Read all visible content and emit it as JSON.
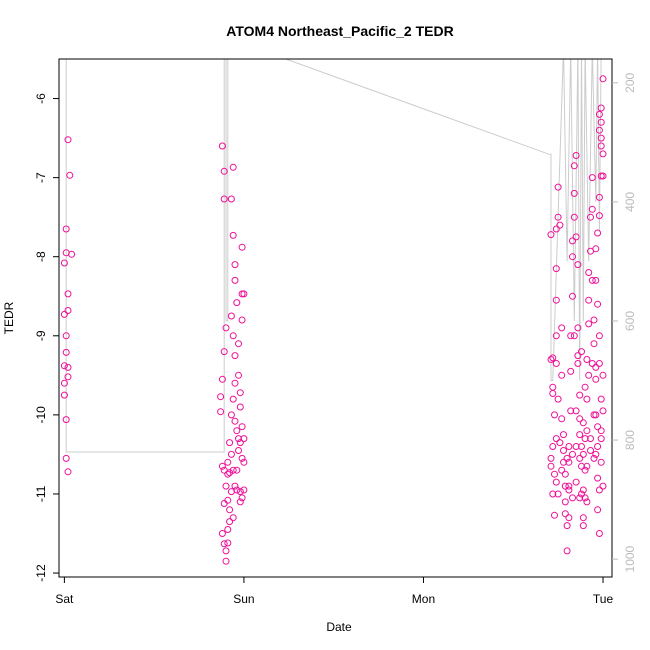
{
  "chart_data": {
    "type": "scatter",
    "title": "ATOM4 Northeast_Pacific_2 TEDR",
    "xlabel": "Date",
    "ylabel": "TEDR",
    "x_unit": "days since Sat 00:00",
    "xlim": [
      -0.03,
      3.05
    ],
    "ylim": [
      -12.05,
      -5.5
    ],
    "y2lim": [
      1030,
      160
    ],
    "x_ticks": [
      {
        "value": 0,
        "label": "Sat"
      },
      {
        "value": 1,
        "label": "Sun"
      },
      {
        "value": 2,
        "label": "Mon"
      },
      {
        "value": 3,
        "label": "Tue"
      }
    ],
    "y_ticks": [
      {
        "value": -6,
        "label": "-6"
      },
      {
        "value": -7,
        "label": "-7"
      },
      {
        "value": -8,
        "label": "-8"
      },
      {
        "value": -9,
        "label": "-9"
      },
      {
        "value": -10,
        "label": "-10"
      },
      {
        "value": -11,
        "label": "-11"
      },
      {
        "value": -12,
        "label": "-12"
      }
    ],
    "y2_ticks": [
      {
        "value": 200,
        "label": "200"
      },
      {
        "value": 400,
        "label": "400"
      },
      {
        "value": 600,
        "label": "600"
      },
      {
        "value": 800,
        "label": "800"
      },
      {
        "value": 1000,
        "label": "1000"
      }
    ],
    "colors": {
      "points": "#ee1199",
      "altitude_line": "#cccccc",
      "right_axis": "#bbbbbb"
    },
    "series": [
      {
        "type": "line",
        "axis": "right",
        "points": [
          [
            0.01,
            140
          ],
          [
            0.01,
            820
          ],
          [
            0.8,
            820
          ],
          [
            0.89,
            820
          ],
          [
            0.89,
            140
          ],
          [
            0.9,
            140
          ],
          [
            0.9,
            600
          ],
          [
            0.91,
            600
          ],
          [
            0.91,
            140
          ],
          [
            0.92,
            140
          ],
          [
            1.05,
            140
          ],
          [
            2.7,
            320
          ],
          [
            2.71,
            320
          ],
          [
            2.71,
            700
          ],
          [
            2.72,
            700
          ],
          [
            2.78,
            140
          ],
          [
            2.8,
            500
          ],
          [
            2.82,
            140
          ],
          [
            2.84,
            600
          ],
          [
            2.86,
            140
          ],
          [
            2.87,
            700
          ],
          [
            2.88,
            140
          ],
          [
            2.89,
            600
          ],
          [
            2.9,
            140
          ],
          [
            2.92,
            500
          ],
          [
            2.94,
            140
          ],
          [
            2.96,
            400
          ],
          [
            2.97,
            140
          ],
          [
            2.98,
            450
          ],
          [
            2.99,
            140
          ]
        ]
      },
      {
        "type": "scatter",
        "axis": "left",
        "points": [
          [
            0.0,
            -9.38
          ],
          [
            0.0,
            -9.6
          ],
          [
            0.0,
            -9.75
          ],
          [
            0.01,
            -10.06
          ],
          [
            0.01,
            -10.55
          ],
          [
            0.02,
            -10.72
          ],
          [
            0.01,
            -7.95
          ],
          [
            0.0,
            -8.08
          ],
          [
            0.01,
            -7.65
          ],
          [
            0.02,
            -8.47
          ],
          [
            0.0,
            -8.73
          ],
          [
            0.02,
            -8.68
          ],
          [
            0.01,
            -9.0
          ],
          [
            0.01,
            -9.21
          ],
          [
            0.02,
            -9.52
          ],
          [
            0.02,
            -9.4
          ],
          [
            0.02,
            -6.52
          ],
          [
            0.03,
            -6.97
          ],
          [
            0.04,
            -7.97
          ],
          [
            0.88,
            -6.6
          ],
          [
            0.89,
            -6.92
          ],
          [
            0.89,
            -7.27
          ],
          [
            0.9,
            -8.9
          ],
          [
            0.89,
            -9.2
          ],
          [
            0.88,
            -9.55
          ],
          [
            0.87,
            -9.77
          ],
          [
            0.87,
            -9.96
          ],
          [
            0.88,
            -10.65
          ],
          [
            0.89,
            -10.7
          ],
          [
            0.89,
            -11.12
          ],
          [
            0.88,
            -11.5
          ],
          [
            0.89,
            -11.63
          ],
          [
            0.9,
            -11.72
          ],
          [
            0.9,
            -11.85
          ],
          [
            0.91,
            -11.62
          ],
          [
            0.91,
            -11.45
          ],
          [
            0.91,
            -11.08
          ],
          [
            0.9,
            -10.9
          ],
          [
            0.91,
            -10.6
          ],
          [
            0.92,
            -10.35
          ],
          [
            0.93,
            -10.5
          ],
          [
            0.93,
            -10.0
          ],
          [
            0.94,
            -9.8
          ],
          [
            0.95,
            -9.6
          ],
          [
            0.95,
            -9.25
          ],
          [
            0.94,
            -9.0
          ],
          [
            0.93,
            -8.75
          ],
          [
            0.93,
            -7.27
          ],
          [
            0.94,
            -6.87
          ],
          [
            0.94,
            -7.73
          ],
          [
            0.95,
            -8.1
          ],
          [
            0.95,
            -8.3
          ],
          [
            0.96,
            -8.58
          ],
          [
            0.97,
            -9.1
          ],
          [
            0.97,
            -9.5
          ],
          [
            0.98,
            -9.72
          ],
          [
            0.98,
            -9.9
          ],
          [
            0.99,
            -10.15
          ],
          [
            1.0,
            -10.3
          ],
          [
            1.0,
            -10.6
          ],
          [
            1.0,
            -10.95
          ],
          [
            0.99,
            -11.05
          ],
          [
            0.98,
            -10.97
          ],
          [
            0.97,
            -10.45
          ],
          [
            0.96,
            -10.2
          ],
          [
            0.95,
            -10.08
          ],
          [
            0.94,
            -10.7
          ],
          [
            0.93,
            -10.97
          ],
          [
            0.92,
            -11.2
          ],
          [
            0.92,
            -10.73
          ],
          [
            0.96,
            -10.95
          ],
          [
            0.99,
            -8.47
          ],
          [
            0.99,
            -8.8
          ],
          [
            0.99,
            -7.88
          ],
          [
            1.0,
            -8.47
          ],
          [
            0.97,
            -10.3
          ],
          [
            0.98,
            -11.1
          ],
          [
            0.96,
            -10.7
          ],
          [
            0.95,
            -10.9
          ],
          [
            0.94,
            -11.3
          ],
          [
            0.92,
            -11.35
          ],
          [
            0.91,
            -10.75
          ],
          [
            0.98,
            -10.35
          ],
          [
            0.99,
            -10.55
          ],
          [
            2.71,
            -7.72
          ],
          [
            2.72,
            -9.28
          ],
          [
            2.71,
            -9.3
          ],
          [
            2.72,
            -9.65
          ],
          [
            2.72,
            -9.73
          ],
          [
            2.73,
            -10.0
          ],
          [
            2.72,
            -10.4
          ],
          [
            2.71,
            -10.55
          ],
          [
            2.71,
            -10.65
          ],
          [
            2.73,
            -10.75
          ],
          [
            2.74,
            -10.85
          ],
          [
            2.72,
            -11.0
          ],
          [
            2.73,
            -11.27
          ],
          [
            2.75,
            -11.0
          ],
          [
            2.74,
            -10.3
          ],
          [
            2.75,
            -9.8
          ],
          [
            2.74,
            -9.35
          ],
          [
            2.74,
            -9.0
          ],
          [
            2.74,
            -8.55
          ],
          [
            2.74,
            -8.15
          ],
          [
            2.74,
            -7.65
          ],
          [
            2.75,
            -7.5
          ],
          [
            2.75,
            -7.12
          ],
          [
            2.76,
            -7.6
          ],
          [
            2.77,
            -8.9
          ],
          [
            2.77,
            -9.5
          ],
          [
            2.77,
            -10.05
          ],
          [
            2.78,
            -10.25
          ],
          [
            2.78,
            -10.6
          ],
          [
            2.79,
            -10.9
          ],
          [
            2.79,
            -11.1
          ],
          [
            2.79,
            -11.25
          ],
          [
            2.8,
            -11.4
          ],
          [
            2.8,
            -11.72
          ],
          [
            2.81,
            -11.3
          ],
          [
            2.81,
            -10.9
          ],
          [
            2.81,
            -10.4
          ],
          [
            2.82,
            -9.95
          ],
          [
            2.82,
            -9.45
          ],
          [
            2.82,
            -9.0
          ],
          [
            2.83,
            -8.5
          ],
          [
            2.83,
            -8.0
          ],
          [
            2.83,
            -7.8
          ],
          [
            2.84,
            -7.5
          ],
          [
            2.84,
            -7.2
          ],
          [
            2.84,
            -6.85
          ],
          [
            2.85,
            -6.72
          ],
          [
            2.85,
            -7.75
          ],
          [
            2.86,
            -8.1
          ],
          [
            2.86,
            -8.9
          ],
          [
            2.86,
            -9.35
          ],
          [
            2.87,
            -9.75
          ],
          [
            2.87,
            -10.05
          ],
          [
            2.88,
            -10.4
          ],
          [
            2.88,
            -10.65
          ],
          [
            2.88,
            -11.0
          ],
          [
            2.89,
            -11.3
          ],
          [
            2.89,
            -11.4
          ],
          [
            2.9,
            -11.05
          ],
          [
            2.9,
            -10.7
          ],
          [
            2.9,
            -10.3
          ],
          [
            2.91,
            -9.8
          ],
          [
            2.91,
            -9.3
          ],
          [
            2.92,
            -8.85
          ],
          [
            2.92,
            -8.55
          ],
          [
            2.92,
            -8.2
          ],
          [
            2.93,
            -7.93
          ],
          [
            2.93,
            -7.5
          ],
          [
            2.94,
            -7.0
          ],
          [
            2.94,
            -7.4
          ],
          [
            2.94,
            -8.3
          ],
          [
            2.95,
            -8.8
          ],
          [
            2.95,
            -9.1
          ],
          [
            2.96,
            -9.55
          ],
          [
            2.96,
            -10.0
          ],
          [
            2.96,
            -10.5
          ],
          [
            2.97,
            -10.8
          ],
          [
            2.97,
            -11.2
          ],
          [
            2.98,
            -11.5
          ],
          [
            2.98,
            -10.95
          ],
          [
            2.99,
            -10.6
          ],
          [
            2.99,
            -10.2
          ],
          [
            2.99,
            -9.8
          ],
          [
            2.98,
            -9.35
          ],
          [
            2.98,
            -9.0
          ],
          [
            2.97,
            -8.6
          ],
          [
            2.96,
            -8.3
          ],
          [
            2.96,
            -7.9
          ],
          [
            2.97,
            -7.7
          ],
          [
            2.98,
            -7.48
          ],
          [
            2.98,
            -7.25
          ],
          [
            2.99,
            -6.98
          ],
          [
            2.99,
            -6.6
          ],
          [
            2.98,
            -6.4
          ],
          [
            2.98,
            -6.2
          ],
          [
            2.99,
            -6.12
          ],
          [
            2.99,
            -6.5
          ],
          [
            2.99,
            -6.3
          ],
          [
            3.0,
            -6.7
          ],
          [
            3.0,
            -5.75
          ],
          [
            3.0,
            -6.98
          ],
          [
            3.0,
            -9.5
          ],
          [
            3.0,
            -9.95
          ],
          [
            3.0,
            -10.9
          ],
          [
            2.8,
            -10.55
          ],
          [
            2.78,
            -10.45
          ],
          [
            2.76,
            -10.35
          ],
          [
            2.77,
            -10.7
          ],
          [
            2.79,
            -10.75
          ],
          [
            2.81,
            -10.6
          ],
          [
            2.83,
            -10.5
          ],
          [
            2.85,
            -10.4
          ],
          [
            2.87,
            -10.55
          ],
          [
            2.89,
            -10.5
          ],
          [
            2.91,
            -10.65
          ],
          [
            2.93,
            -10.45
          ],
          [
            2.95,
            -10.55
          ],
          [
            2.97,
            -10.4
          ],
          [
            2.85,
            -10.85
          ],
          [
            2.87,
            -11.05
          ],
          [
            2.89,
            -10.95
          ],
          [
            2.91,
            -11.1
          ],
          [
            2.83,
            -11.05
          ],
          [
            2.81,
            -10.95
          ],
          [
            2.84,
            -9.0
          ],
          [
            2.86,
            -9.25
          ],
          [
            2.88,
            -9.2
          ],
          [
            2.9,
            -9.65
          ],
          [
            2.92,
            -9.5
          ],
          [
            2.94,
            -9.35
          ],
          [
            2.96,
            -9.4
          ],
          [
            2.85,
            -9.95
          ],
          [
            2.87,
            -10.25
          ],
          [
            2.89,
            -10.1
          ],
          [
            2.91,
            -10.2
          ],
          [
            2.93,
            -10.3
          ],
          [
            2.95,
            -10.0
          ],
          [
            2.97,
            -10.15
          ],
          [
            2.99,
            -10.3
          ]
        ]
      }
    ]
  }
}
